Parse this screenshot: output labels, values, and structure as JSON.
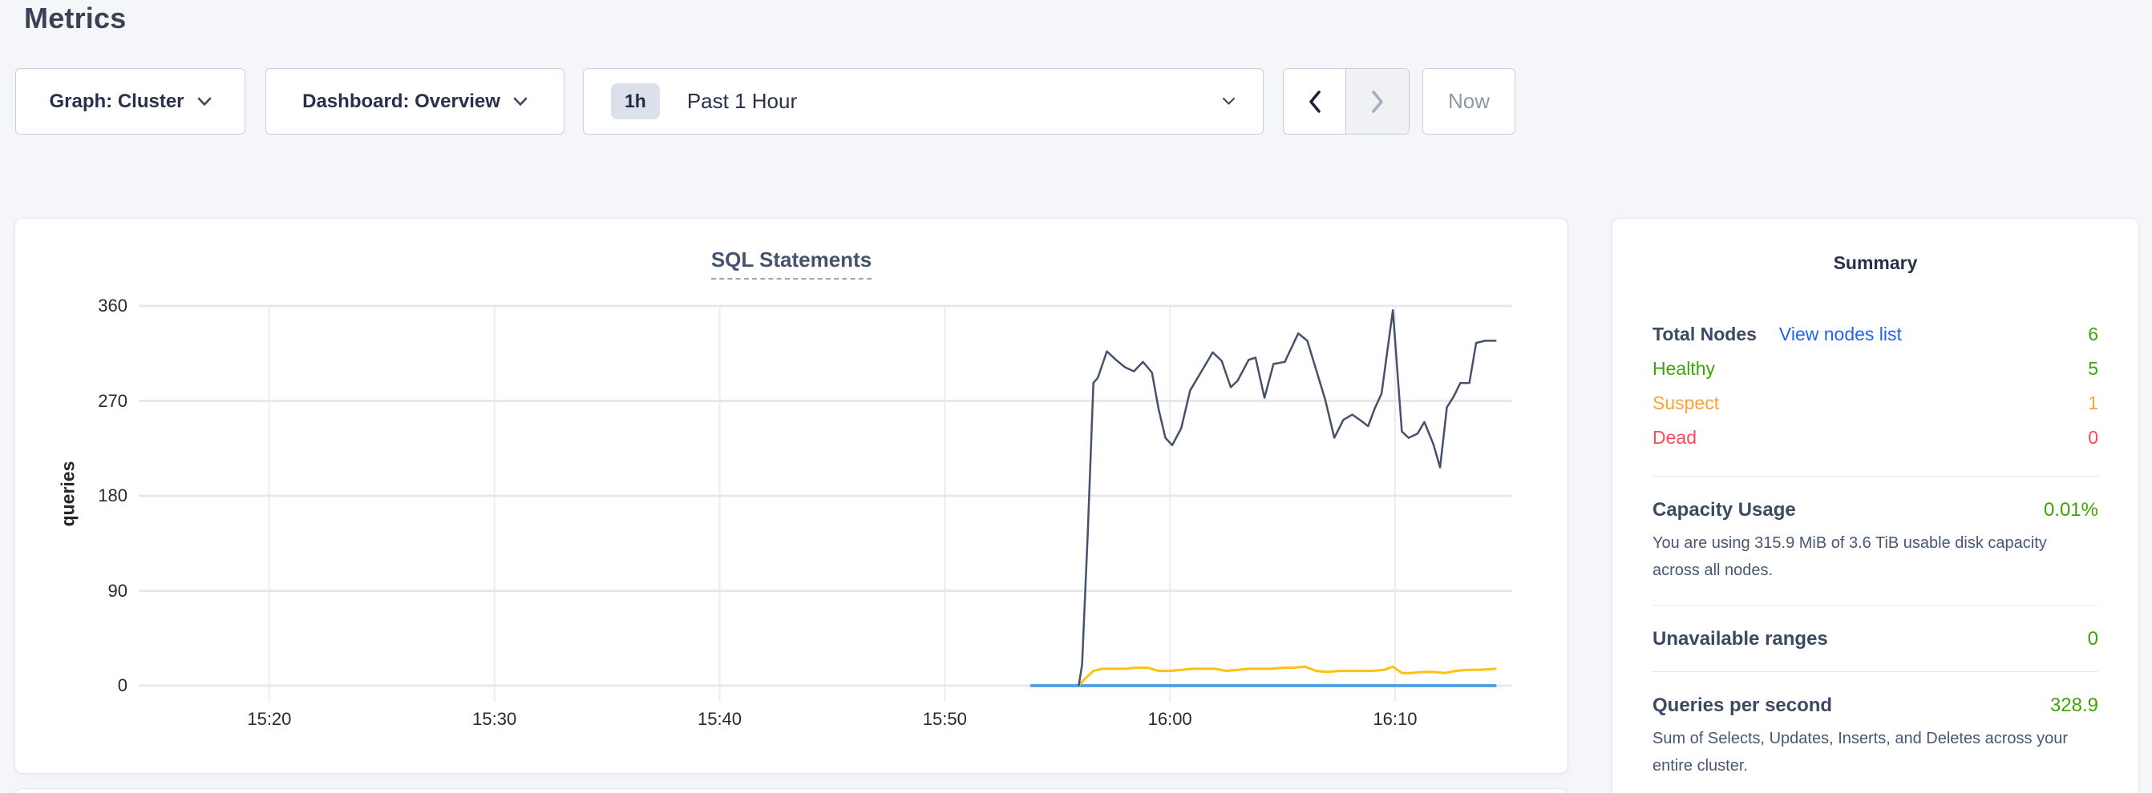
{
  "page": {
    "title": "Metrics"
  },
  "toolbar": {
    "graph": "Graph: Cluster",
    "dashboard": "Dashboard: Overview",
    "time_badge": "1h",
    "time_label": "Past 1 Hour",
    "now_label": "Now"
  },
  "chart_data": {
    "type": "line",
    "title": "SQL Statements",
    "ylabel": "queries",
    "xlabel": "",
    "grid": true,
    "legend_position": "none",
    "ylim": [
      0,
      360
    ],
    "yticks": [
      0,
      90,
      180,
      270,
      360
    ],
    "x_unit": "minutes after 15:00",
    "xlim": [
      14.2,
      75.2
    ],
    "xticks": [
      {
        "t": 20,
        "label": "15:20"
      },
      {
        "t": 30,
        "label": "15:30"
      },
      {
        "t": 40,
        "label": "15:40"
      },
      {
        "t": 50,
        "label": "15:50"
      },
      {
        "t": 60,
        "label": "16:00"
      },
      {
        "t": 70,
        "label": "16:10"
      }
    ],
    "series": [
      {
        "name": "blue-series",
        "color": "#57a1dd",
        "width": 4,
        "points": [
          [
            53.8,
            0
          ],
          [
            74.5,
            0
          ]
        ]
      },
      {
        "name": "yellow-series",
        "color": "#fcc30c",
        "width": 3,
        "points": [
          [
            55.95,
            0
          ],
          [
            56.2,
            6
          ],
          [
            56.6,
            14
          ],
          [
            57.0,
            16
          ],
          [
            57.5,
            16
          ],
          [
            58.0,
            16
          ],
          [
            58.5,
            17
          ],
          [
            59.0,
            17
          ],
          [
            59.5,
            14
          ],
          [
            60.0,
            14
          ],
          [
            60.5,
            15
          ],
          [
            61.0,
            16
          ],
          [
            61.5,
            16
          ],
          [
            62.0,
            16
          ],
          [
            62.5,
            14
          ],
          [
            63.0,
            15
          ],
          [
            63.5,
            16
          ],
          [
            64.0,
            16
          ],
          [
            64.5,
            16
          ],
          [
            65.0,
            17
          ],
          [
            65.5,
            17
          ],
          [
            66.0,
            18
          ],
          [
            66.5,
            14
          ],
          [
            67.0,
            13
          ],
          [
            67.5,
            14
          ],
          [
            68.0,
            14
          ],
          [
            68.5,
            14
          ],
          [
            69.0,
            14
          ],
          [
            69.5,
            15
          ],
          [
            69.9,
            18
          ],
          [
            70.3,
            12
          ],
          [
            70.7,
            12
          ],
          [
            71.2,
            13
          ],
          [
            71.7,
            13
          ],
          [
            72.2,
            12
          ],
          [
            72.7,
            14
          ],
          [
            73.2,
            15
          ],
          [
            73.7,
            15
          ],
          [
            74.5,
            16
          ]
        ]
      },
      {
        "name": "navy-series",
        "color": "#45526c",
        "width": 2.5,
        "points": [
          [
            55.95,
            0
          ],
          [
            56.1,
            20
          ],
          [
            56.35,
            145
          ],
          [
            56.6,
            287
          ],
          [
            56.8,
            292
          ],
          [
            57.2,
            317
          ],
          [
            57.6,
            309
          ],
          [
            58.0,
            302
          ],
          [
            58.4,
            298
          ],
          [
            58.8,
            307
          ],
          [
            59.2,
            297
          ],
          [
            59.5,
            262
          ],
          [
            59.8,
            235
          ],
          [
            60.1,
            228
          ],
          [
            60.5,
            244
          ],
          [
            60.9,
            280
          ],
          [
            61.4,
            298
          ],
          [
            61.9,
            316
          ],
          [
            62.3,
            308
          ],
          [
            62.7,
            283
          ],
          [
            63.0,
            289
          ],
          [
            63.5,
            309
          ],
          [
            63.8,
            311
          ],
          [
            64.2,
            273
          ],
          [
            64.6,
            305
          ],
          [
            65.1,
            307
          ],
          [
            65.7,
            334
          ],
          [
            66.1,
            327
          ],
          [
            66.5,
            299
          ],
          [
            66.9,
            271
          ],
          [
            67.3,
            235
          ],
          [
            67.7,
            252
          ],
          [
            68.1,
            257
          ],
          [
            68.5,
            251
          ],
          [
            68.8,
            246
          ],
          [
            69.1,
            263
          ],
          [
            69.4,
            277
          ],
          [
            69.9,
            356
          ],
          [
            70.3,
            241
          ],
          [
            70.6,
            235
          ],
          [
            71.0,
            239
          ],
          [
            71.3,
            250
          ],
          [
            71.7,
            229
          ],
          [
            72.0,
            207
          ],
          [
            72.3,
            264
          ],
          [
            72.6,
            274
          ],
          [
            72.9,
            287
          ],
          [
            73.3,
            287
          ],
          [
            73.6,
            325
          ],
          [
            74.0,
            327
          ],
          [
            74.5,
            327
          ]
        ]
      }
    ]
  },
  "summary": {
    "title": "Summary",
    "nodes": [
      {
        "label": "Total Nodes",
        "link": "View nodes list",
        "value": "6"
      },
      {
        "label": "Healthy",
        "value": "5"
      },
      {
        "label": "Suspect",
        "value": "1"
      },
      {
        "label": "Dead",
        "value": "0"
      }
    ],
    "sections": [
      {
        "title": "Capacity Usage",
        "value": "0.01%",
        "desc": "You are using 315.9 MiB of 3.6 TiB usable disk capacity across all nodes."
      },
      {
        "title": "Unavailable ranges",
        "value": "0",
        "desc": ""
      },
      {
        "title": "Queries per second",
        "value": "328.9",
        "desc": "Sum of Selects, Updates, Inserts, and Deletes across your entire cluster."
      }
    ],
    "colors": {
      "green": "#3da406",
      "orange": "#f8a33a",
      "red": "#f94a59",
      "link": "#2064f0"
    }
  }
}
